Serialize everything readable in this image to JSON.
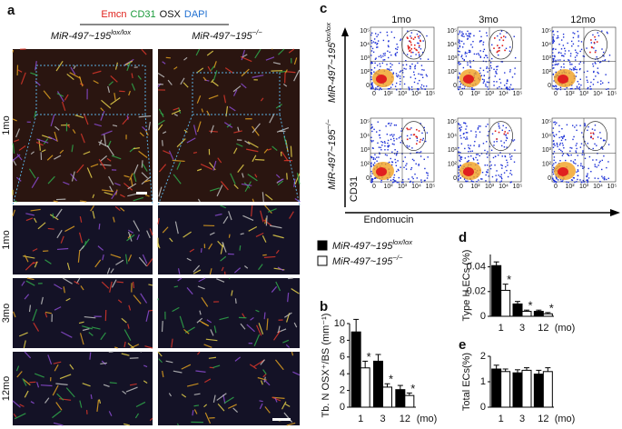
{
  "panel_labels": [
    "a",
    "b",
    "c",
    "d",
    "e"
  ],
  "panel_a": {
    "stains": [
      {
        "text": "Emcn",
        "color": "#e0201b"
      },
      {
        "text": "CD31",
        "color": "#1a9a3a"
      },
      {
        "text": "OSX",
        "color": "#111111"
      },
      {
        "text": "DAPI",
        "color": "#1f6fd1"
      }
    ],
    "columns": [
      {
        "name": "MiR-497~195",
        "sup": "lox/lox"
      },
      {
        "name": "MiR-497~195",
        "sup": "−/−"
      }
    ],
    "rows": [
      "1mo",
      "1mo",
      "3mo",
      "12mo"
    ]
  },
  "panel_c": {
    "columns": [
      "1mo",
      "3mo",
      "12mo"
    ],
    "rows": [
      {
        "name": "MiR-497~195",
        "sup": "lox/lox"
      },
      {
        "name": "MiR-497~195",
        "sup": "−/−"
      }
    ],
    "y_axis": "CD31",
    "x_axis": "Endomucin",
    "tick_labels": [
      "0",
      "10²",
      "10³",
      "10⁴",
      "10⁵"
    ]
  },
  "legend": [
    {
      "name": "MiR-497~195",
      "sup": "lox/lox",
      "color": "#000000"
    },
    {
      "name": "MiR-497~195",
      "sup": "−/−",
      "color": "#ffffff"
    }
  ],
  "chart_data": [
    {
      "type": "bar",
      "ylabel": "Tb. N OSX⁺/BS (mm⁻¹)",
      "xlabel": "(mo)",
      "categories": [
        "1",
        "3",
        "12"
      ],
      "ylim": [
        0,
        10
      ],
      "yticks": [
        0,
        2,
        4,
        6,
        8,
        10
      ],
      "series": [
        {
          "color": "#000000",
          "values": [
            9,
            5.5,
            2.1
          ],
          "errors": [
            1.5,
            0.8,
            0.5
          ]
        },
        {
          "color": "#ffffff",
          "values": [
            4.7,
            2.4,
            1.4
          ],
          "errors": [
            0.8,
            0.4,
            0.3
          ],
          "marks": [
            "*",
            "*",
            "*"
          ]
        }
      ]
    },
    {
      "type": "bar",
      "ylabel": "Type H ECs (%)",
      "xlabel": "(mo)",
      "categories": [
        "1",
        "3",
        "12"
      ],
      "ylim": [
        0,
        0.05
      ],
      "yticks": [
        0,
        0.02,
        0.04
      ],
      "series": [
        {
          "color": "#000000",
          "values": [
            0.041,
            0.01,
            0.004
          ],
          "errors": [
            0.003,
            0.002,
            0.001
          ]
        },
        {
          "color": "#ffffff",
          "values": [
            0.021,
            0.004,
            0.002
          ],
          "errors": [
            0.005,
            0.001,
            0.001
          ],
          "marks": [
            "*",
            "*",
            "*"
          ]
        }
      ]
    },
    {
      "type": "bar",
      "ylabel": "Total ECs(%)",
      "xlabel": "(mo)",
      "categories": [
        "1",
        "3",
        "12"
      ],
      "ylim": [
        0,
        2
      ],
      "yticks": [
        0,
        1,
        2
      ],
      "series": [
        {
          "color": "#000000",
          "values": [
            1.5,
            1.35,
            1.3
          ],
          "errors": [
            0.15,
            0.12,
            0.15
          ]
        },
        {
          "color": "#ffffff",
          "values": [
            1.4,
            1.45,
            1.4
          ],
          "errors": [
            0.1,
            0.1,
            0.15
          ]
        }
      ]
    }
  ]
}
